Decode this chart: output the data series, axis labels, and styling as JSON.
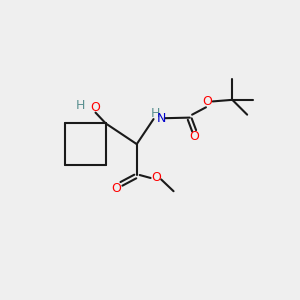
{
  "bg_color": "#efefef",
  "bond_color": "#1a1a1a",
  "o_color": "#ff0000",
  "n_color": "#0000cc",
  "h_color": "#5a9090",
  "line_width": 1.5,
  "figsize": [
    3.0,
    3.0
  ],
  "dpi": 100,
  "xlim": [
    0,
    10
  ],
  "ylim": [
    0,
    10
  ]
}
